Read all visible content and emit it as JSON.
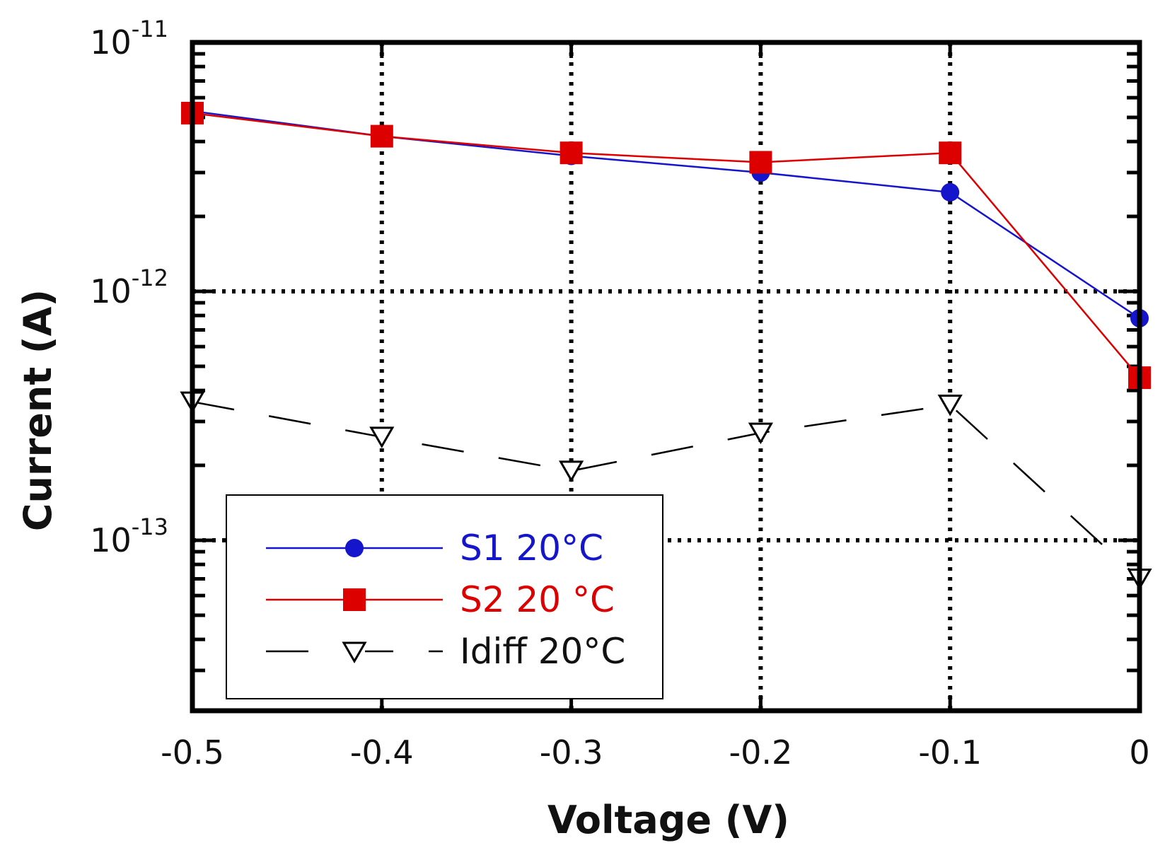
{
  "chart_data": {
    "type": "line",
    "title": "",
    "xlabel": "Voltage (V)",
    "ylabel": "Current (A)",
    "x_scale": "linear",
    "y_scale": "log",
    "xlim": [
      -0.5,
      0
    ],
    "ylim": [
      2e-14,
      1e-11
    ],
    "x_ticks": [
      -0.5,
      -0.4,
      -0.3,
      -0.2,
      -0.1,
      0
    ],
    "x_tick_labels": [
      "-0.5",
      "-0.4",
      "-0.3",
      "-0.2",
      "-0.1",
      "0"
    ],
    "y_major_ticks": [
      {
        "value": 1e-11,
        "base": "10",
        "exp": "-11"
      },
      {
        "value": 1e-12,
        "base": "10",
        "exp": "-12"
      },
      {
        "value": 1e-13,
        "base": "10",
        "exp": "-13"
      }
    ],
    "grid": true,
    "legend_position": "bottom-left",
    "series": [
      {
        "name": "S1 20°C",
        "color": "#1515cc",
        "marker": "circle",
        "line_style": "solid",
        "x": [
          -0.5,
          -0.4,
          -0.3,
          -0.2,
          -0.1,
          0
        ],
        "y": [
          5.3e-12,
          4.2e-12,
          3.5e-12,
          3e-12,
          2.5e-12,
          7.8e-13
        ]
      },
      {
        "name": "S2 20 °C",
        "color": "#dd0000",
        "marker": "square",
        "line_style": "solid",
        "x": [
          -0.5,
          -0.4,
          -0.3,
          -0.2,
          -0.1,
          0
        ],
        "y": [
          5.2e-12,
          4.2e-12,
          3.6e-12,
          3.3e-12,
          3.6e-12,
          4.5e-13
        ]
      },
      {
        "name": "Idiff 20°C",
        "color": "#000000",
        "marker": "triangle-down-open",
        "line_style": "dashed",
        "x": [
          -0.5,
          -0.4,
          -0.3,
          -0.2,
          -0.1,
          0
        ],
        "y": [
          3.6e-13,
          2.6e-13,
          1.9e-13,
          2.7e-13,
          3.5e-13,
          7e-14
        ]
      }
    ]
  }
}
